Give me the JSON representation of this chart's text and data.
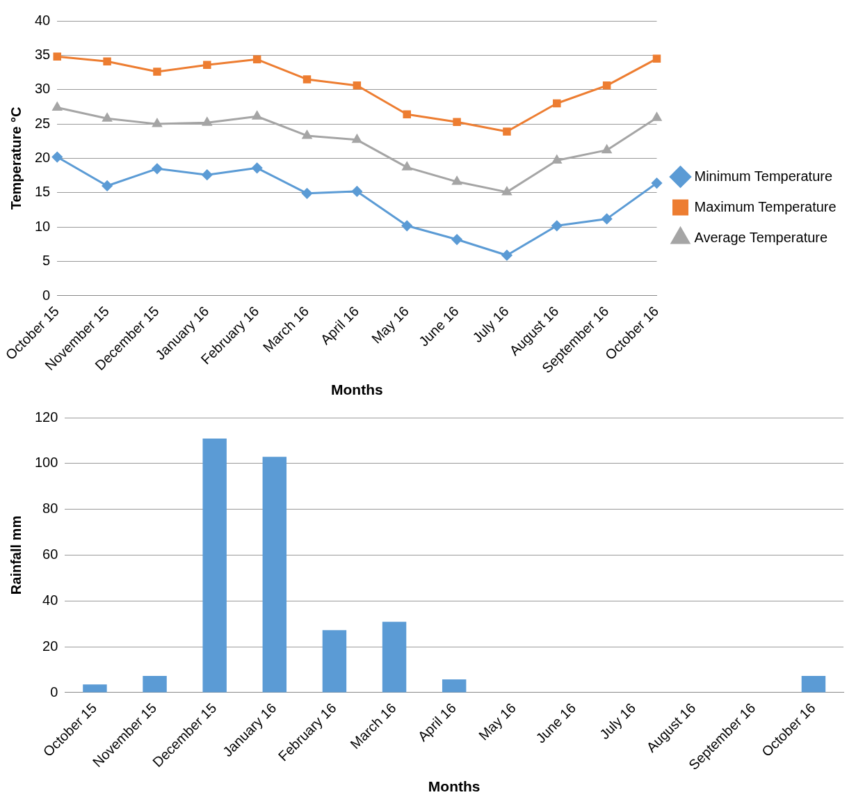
{
  "chart_data": [
    {
      "type": "line",
      "xlabel": "Months",
      "ylabel": "Temperature °C",
      "categories": [
        "October 15",
        "November 15",
        "December 15",
        "January 16",
        "February 16",
        "March 16",
        "April 16",
        "May 16",
        "June 16",
        "July 16",
        "August 16",
        "September 16",
        "October 16"
      ],
      "series": [
        {
          "name": "Minimum Temperature",
          "color": "#5b9bd5",
          "marker": "diamond",
          "values": [
            20.2,
            16.0,
            18.5,
            17.6,
            18.6,
            14.9,
            15.2,
            10.2,
            8.2,
            5.9,
            10.2,
            11.2,
            16.4
          ]
        },
        {
          "name": "Maximum Temperature",
          "color": "#ed7d31",
          "marker": "square",
          "values": [
            34.8,
            34.1,
            32.6,
            33.6,
            34.4,
            31.5,
            30.6,
            26.4,
            25.3,
            23.9,
            28.0,
            30.6,
            34.5
          ]
        },
        {
          "name": "Average Temperature",
          "color": "#a5a5a5",
          "marker": "triangle",
          "values": [
            27.4,
            25.8,
            25.0,
            25.2,
            26.1,
            23.3,
            22.7,
            18.7,
            16.6,
            15.1,
            19.7,
            21.2,
            25.9
          ]
        }
      ],
      "ylim": [
        0,
        40
      ],
      "yticks": [
        0,
        5,
        10,
        15,
        20,
        25,
        30,
        35,
        40
      ],
      "grid": "y",
      "legend": "right"
    },
    {
      "type": "bar",
      "xlabel": "Months",
      "ylabel": "Rainfall mm",
      "categories": [
        "October 15",
        "November 15",
        "December 15",
        "January 16",
        "February 16",
        "March 16",
        "April 16",
        "May 16",
        "June 16",
        "July 16",
        "August 16",
        "September 16",
        "October 16"
      ],
      "series": [
        {
          "color": "#5b9bd5",
          "values": [
            3.6,
            7.3,
            110.9,
            102.9,
            27.3,
            30.9,
            5.8,
            0,
            0,
            0,
            0,
            0,
            7.3
          ]
        }
      ],
      "ylim": [
        0,
        120
      ],
      "yticks": [
        0,
        20,
        40,
        60,
        80,
        100,
        120
      ],
      "grid": "y"
    }
  ]
}
